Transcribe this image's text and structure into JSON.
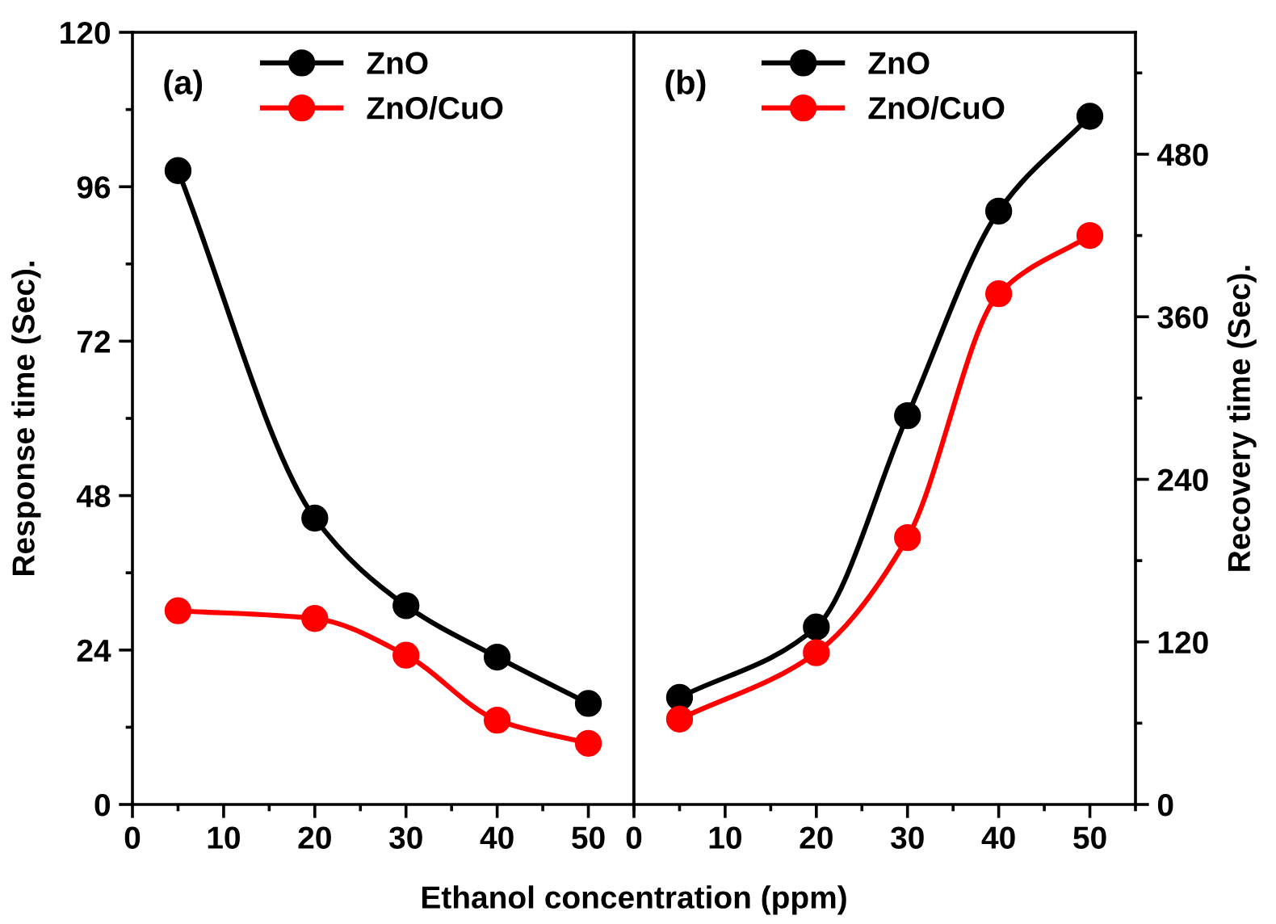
{
  "chart_data": [
    {
      "type": "line",
      "xlabel": "Ethanol concentration (ppm)",
      "ylabel": "Response time (Sec).",
      "annotations": [
        "(a)"
      ],
      "x": [
        5,
        20,
        30,
        40,
        50
      ],
      "xlim": [
        0,
        55
      ],
      "xticks": [
        0,
        10,
        20,
        30,
        40,
        50
      ],
      "ylim": [
        0,
        120
      ],
      "yticks": [
        0,
        24,
        48,
        72,
        96,
        120
      ],
      "marker": "circle",
      "legend": "top",
      "grid": false,
      "series": [
        {
          "name": "ZnO",
          "color": "#000000",
          "values": [
            98.5,
            44.5,
            30.9,
            22.9,
            15.7
          ]
        },
        {
          "name": "ZnO/CuO",
          "color": "#ff0000",
          "values": [
            30.1,
            28.9,
            23.2,
            13.1,
            9.5
          ]
        }
      ]
    },
    {
      "type": "line",
      "y2label": "Recovery time (Sec).",
      "annotations": [
        "(b)"
      ],
      "x": [
        5,
        20,
        30,
        40,
        50
      ],
      "xlim": [
        0,
        55
      ],
      "xticks": [
        0,
        10,
        20,
        30,
        40,
        50
      ],
      "y2lim": [
        0,
        570
      ],
      "y2ticks": [
        0,
        120,
        240,
        360,
        480
      ],
      "marker": "circle",
      "legend": "top",
      "grid": false,
      "series": [
        {
          "name": "ZnO",
          "color": "#000000",
          "axis": "y2",
          "values": [
            79,
            131,
            287,
            438,
            508
          ]
        },
        {
          "name": "ZnO/CuO",
          "color": "#ff0000",
          "axis": "y2",
          "values": [
            63,
            112,
            197,
            377,
            420
          ]
        }
      ]
    }
  ]
}
